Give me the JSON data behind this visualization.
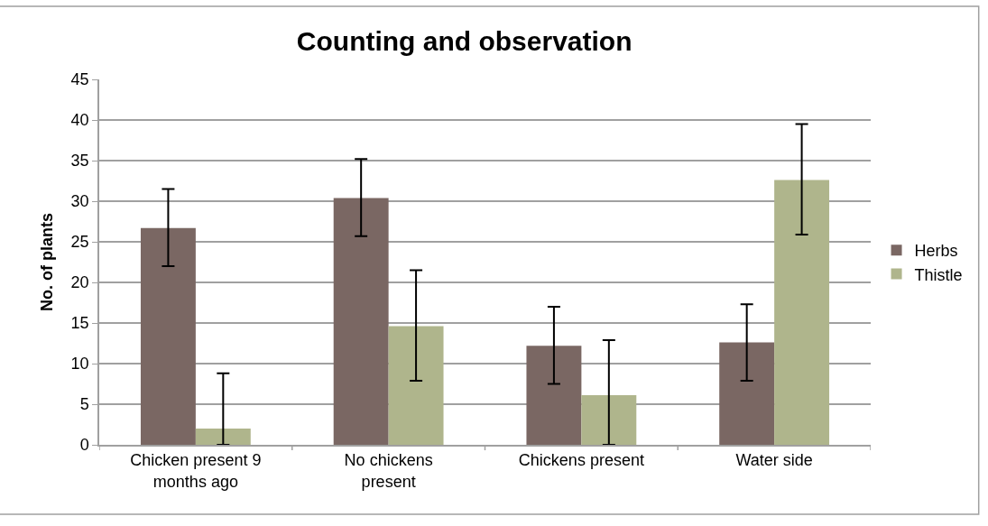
{
  "chart_data": {
    "type": "bar",
    "title": "Counting and observation",
    "ylabel": "No. of plants",
    "categories": [
      "Chicken present 9 months ago",
      "No chickens present",
      "Chickens present",
      "Water side"
    ],
    "series": [
      {
        "name": "Herbs",
        "color": "#7a6763",
        "values": [
          26.7,
          30.4,
          12.2,
          12.6
        ],
        "errors": [
          [
            22.0,
            31.5
          ],
          [
            25.7,
            35.2
          ],
          [
            7.5,
            17.0
          ],
          [
            7.9,
            17.3
          ]
        ]
      },
      {
        "name": "Thistle",
        "color": "#afb58c",
        "values": [
          2.0,
          14.6,
          6.1,
          32.6
        ],
        "errors": [
          [
            0,
            8.8
          ],
          [
            7.9,
            21.5
          ],
          [
            0,
            12.9
          ],
          [
            25.9,
            39.5
          ]
        ]
      }
    ],
    "ylim": [
      0,
      45
    ],
    "yticks": [
      0,
      5,
      10,
      15,
      20,
      25,
      30,
      35,
      40,
      45
    ],
    "grid": "y",
    "legend": "right"
  }
}
